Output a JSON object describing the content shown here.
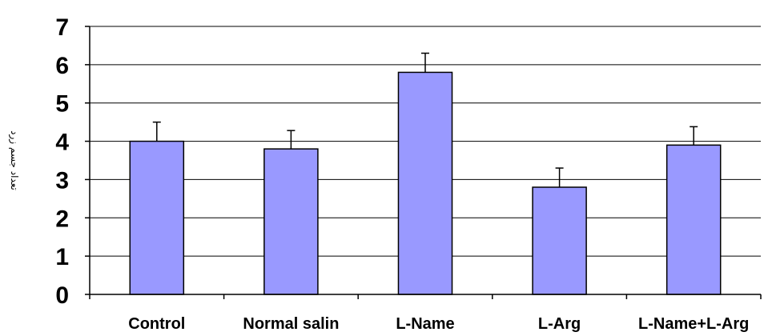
{
  "chart_data": {
    "type": "bar",
    "title": "",
    "xlabel": "",
    "ylabel": "تعداد جسم زرد",
    "categories": [
      "Control",
      "Normal salin",
      "L-Name",
      "L-Arg",
      "L-Name+L-Arg"
    ],
    "series": [
      {
        "values": [
          4.0,
          3.8,
          5.8,
          2.8,
          3.9
        ],
        "error": [
          0.5,
          0.48,
          0.5,
          0.5,
          0.48
        ]
      }
    ],
    "ylim": [
      0,
      7
    ],
    "yticks": [
      "0",
      "1",
      "2",
      "3",
      "4",
      "5",
      "6",
      "7"
    ],
    "grid": true,
    "legend": "none",
    "colors": {
      "bar": "#9999ff",
      "bar_stroke": "#000000",
      "grid": "#000000"
    }
  }
}
